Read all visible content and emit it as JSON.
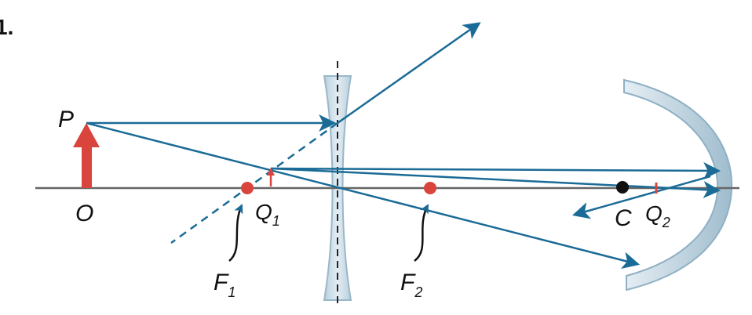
{
  "figure": {
    "number": "1.",
    "labels": {
      "object_tip": "P",
      "object_base": "O",
      "lens_focus": "F",
      "lens_focus_sub": "1",
      "lens_focus2": "F",
      "lens_focus2_sub": "2",
      "image1": "Q",
      "image1_sub": "1",
      "mirror_center": "C",
      "image2": "Q",
      "image2_sub": "2"
    },
    "colors": {
      "axis": "#666666",
      "ray": "#1a6b96",
      "object": "#d9443c",
      "focal_point": "#d9443c",
      "center_point": "#111111",
      "lens_fill": "#c9dbe6",
      "lens_stroke": "#9ab7c8",
      "mirror_fill": "#c3d5e1",
      "mirror_stroke": "#8fb0c4"
    }
  }
}
